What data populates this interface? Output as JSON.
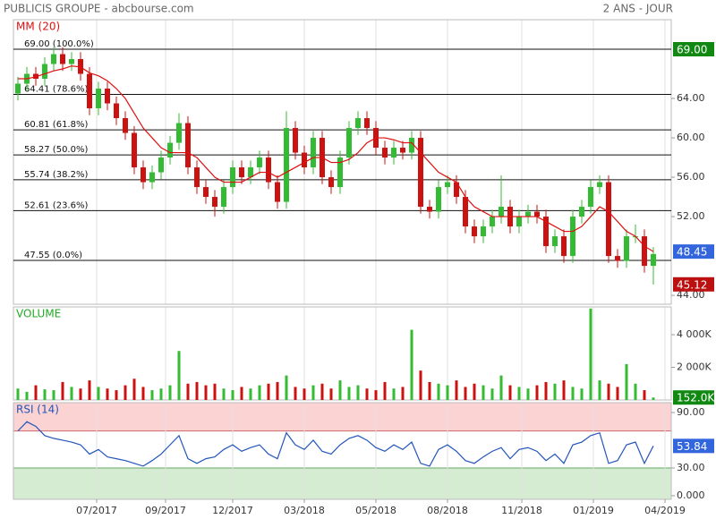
{
  "header": {
    "title": "PUBLICIS GROUPE - abcbourse.com",
    "period": "2 ANS - JOUR"
  },
  "chart_data": [
    {
      "type": "candlestick",
      "title": "MM (20)",
      "up_color": "#33bb33",
      "down_color": "#cc1111",
      "open": [
        64.5,
        65.5,
        66.5,
        66,
        67.5,
        68.5,
        67.5,
        68,
        66.5,
        63,
        65,
        63.5,
        62,
        60.5,
        57,
        55.5,
        56.5,
        58,
        59.5,
        61.5,
        57,
        55,
        54,
        53,
        55,
        57,
        56,
        57,
        58,
        55.5,
        53.5,
        61,
        58.5,
        57,
        60,
        56,
        55,
        58,
        61,
        62,
        61,
        59,
        58,
        59,
        58.5,
        60,
        53,
        52.5,
        55,
        55.5,
        54,
        51,
        50,
        51,
        52,
        53,
        51,
        52,
        52.5,
        52,
        49,
        50,
        48,
        52,
        53,
        55,
        55.5,
        48,
        47.5,
        50,
        50,
        47
      ],
      "high": [
        66.2,
        67.2,
        67.2,
        68.2,
        69.2,
        69.2,
        68.7,
        68.7,
        67.2,
        65.7,
        65.7,
        64.2,
        62.7,
        61.2,
        57.7,
        57.2,
        58.7,
        60.2,
        62.5,
        62.2,
        57.7,
        55.7,
        54.7,
        55.7,
        57.7,
        57.7,
        57.7,
        58.7,
        58.7,
        56.2,
        62.7,
        61.7,
        59.2,
        60.7,
        60.7,
        56.7,
        58.7,
        61.7,
        62.7,
        62.7,
        61.7,
        59.7,
        59.7,
        59.7,
        60.7,
        60.7,
        53.7,
        55.7,
        56.2,
        56.2,
        54.7,
        51.7,
        51.7,
        52.7,
        56.2,
        53.7,
        52.7,
        53.2,
        53.2,
        52.7,
        50.7,
        50.7,
        52.7,
        53.7,
        55.7,
        56.2,
        56.2,
        48.7,
        50.7,
        51.2,
        50.7,
        48.9
      ],
      "low": [
        63.8,
        64.8,
        65.3,
        65.3,
        66.8,
        66.8,
        66.8,
        65.8,
        62.3,
        62.3,
        62.8,
        61.3,
        59.8,
        56.3,
        54.8,
        54.8,
        55.8,
        57.3,
        58.8,
        56.3,
        54.3,
        53.3,
        52,
        52.3,
        54.3,
        55.3,
        55.3,
        56.3,
        54.8,
        52.8,
        52.8,
        57.8,
        56.3,
        56.3,
        55.3,
        54.3,
        54.3,
        57.3,
        60.3,
        60.3,
        58.3,
        57.3,
        57.3,
        57.8,
        57.8,
        52.3,
        51.8,
        51.8,
        54.3,
        53.3,
        50.3,
        49.3,
        49.3,
        50.3,
        51.3,
        50.3,
        50.3,
        51.3,
        51.3,
        48.3,
        48.3,
        47.3,
        47.3,
        51.3,
        52.3,
        54.3,
        47.3,
        46.8,
        46.8,
        49.3,
        46.3,
        45.1
      ],
      "close": [
        65.5,
        66.5,
        66,
        67.5,
        68.5,
        67.5,
        68,
        66.5,
        63,
        65,
        63.5,
        62,
        60.5,
        57,
        55.5,
        56.5,
        58,
        59.5,
        61.5,
        57,
        55,
        54,
        53,
        55,
        57,
        56,
        57,
        58,
        55.5,
        53.5,
        61,
        58.5,
        57,
        60,
        56,
        55,
        58,
        61,
        62,
        61,
        59,
        58,
        59,
        58.5,
        60,
        53,
        52.5,
        55,
        55.5,
        54,
        51,
        50,
        51,
        52,
        53,
        51,
        52,
        52.5,
        52,
        49,
        50,
        48,
        52,
        53,
        55,
        55.5,
        48,
        47.5,
        50,
        50,
        47,
        48.2
      ],
      "ma": {
        "name": "MM (20)",
        "color": "#dd1111",
        "values": [
          66,
          66,
          66.2,
          66.5,
          66.8,
          67,
          67.3,
          67.2,
          66.6,
          66.3,
          65.8,
          65,
          64,
          62.5,
          61,
          60,
          59,
          58.5,
          58.5,
          58.5,
          58,
          57,
          56,
          55.5,
          55.5,
          55.5,
          56,
          56.5,
          56.5,
          56,
          56.5,
          57,
          57.5,
          58,
          58,
          57.5,
          57.5,
          57.8,
          58.5,
          59.5,
          60,
          60,
          59.8,
          59.5,
          59.5,
          58.5,
          57.5,
          56.5,
          56,
          55.5,
          54,
          53,
          52.5,
          52,
          52,
          52,
          52,
          52,
          52,
          51.5,
          51,
          50.5,
          50.5,
          51,
          52,
          53,
          52.5,
          51.5,
          50.5,
          50,
          49,
          48.45
        ]
      },
      "ylim": [
        43.1,
        72
      ],
      "yticks": [
        {
          "value": 44,
          "label": "44.00"
        },
        {
          "value": 52,
          "label": "52.00"
        },
        {
          "value": 56,
          "label": "56.00"
        },
        {
          "value": 60,
          "label": "60.00"
        },
        {
          "value": 64,
          "label": "64.00"
        }
      ],
      "levels": [
        {
          "value": 69,
          "label": "69.00  (100.0%)"
        },
        {
          "value": 64.41,
          "label": "64.41  (78.6%)"
        },
        {
          "value": 60.81,
          "label": "60.81  (61.8%)"
        },
        {
          "value": 58.27,
          "label": "58.27  (50.0%)"
        },
        {
          "value": 55.74,
          "label": "55.74  (38.2%)"
        },
        {
          "value": 52.61,
          "label": "52.61  (23.6%)"
        },
        {
          "value": 47.55,
          "label": "47.55  (0.0%)"
        }
      ],
      "markers": [
        {
          "value": 69,
          "label": "69.00",
          "color": "#118811"
        },
        {
          "value": 48.45,
          "label": "48.45",
          "color": "#3366dd"
        },
        {
          "value": 45.12,
          "label": "45.12",
          "color": "#bb1111"
        }
      ]
    },
    {
      "type": "bar",
      "title": "VOLUME",
      "values": [
        700,
        500,
        900,
        650,
        600,
        1100,
        800,
        700,
        1200,
        800,
        700,
        600,
        900,
        1300,
        800,
        600,
        700,
        900,
        3000,
        1000,
        1100,
        900,
        1000,
        700,
        600,
        800,
        700,
        900,
        1000,
        1100,
        1500,
        800,
        700,
        900,
        1000,
        700,
        1200,
        800,
        900,
        700,
        600,
        1100,
        700,
        800,
        4300,
        1800,
        1100,
        1000,
        900,
        1200,
        800,
        1000,
        900,
        700,
        1500,
        900,
        800,
        700,
        900,
        1100,
        1000,
        1200,
        800,
        700,
        5600,
        1200,
        1000,
        800,
        2200,
        1000,
        600,
        152
      ],
      "ylim": [
        0,
        5700
      ],
      "yticks": [
        {
          "value": 2000,
          "label": "2 000K"
        },
        {
          "value": 4000,
          "label": "4 000K"
        }
      ],
      "markers": [
        {
          "value": 152,
          "label": "152.0K",
          "color": "#118811"
        }
      ]
    },
    {
      "type": "line",
      "title": "RSI (14)",
      "color": "#2255bb",
      "values": [
        70,
        80,
        75,
        65,
        62,
        60,
        58,
        55,
        45,
        50,
        42,
        40,
        38,
        35,
        32,
        38,
        45,
        55,
        65,
        40,
        35,
        40,
        42,
        50,
        55,
        48,
        52,
        55,
        45,
        40,
        68,
        55,
        50,
        60,
        48,
        45,
        55,
        62,
        65,
        60,
        52,
        48,
        55,
        50,
        58,
        35,
        32,
        50,
        55,
        48,
        38,
        35,
        42,
        48,
        52,
        40,
        50,
        52,
        48,
        38,
        45,
        35,
        55,
        58,
        65,
        68,
        35,
        38,
        55,
        58,
        35,
        53.84
      ],
      "ylim": [
        -3.9,
        100.6
      ],
      "yticks": [
        {
          "value": 0,
          "label": "0.000"
        },
        {
          "value": 30,
          "label": "30.00"
        },
        {
          "value": 90,
          "label": "90.00"
        }
      ],
      "upper": 70,
      "lower": 30,
      "markers": [
        {
          "value": 53.84,
          "label": "53.84",
          "color": "#3366dd"
        }
      ],
      "xlim": [
        -0.5,
        73
      ],
      "xticks": [
        {
          "value": 8.8,
          "label": "07/2017"
        },
        {
          "value": 16.5,
          "label": "09/2017"
        },
        {
          "value": 24,
          "label": "12/2017"
        },
        {
          "value": 32,
          "label": "03/2018"
        },
        {
          "value": 40,
          "label": "05/2018"
        },
        {
          "value": 48,
          "label": "08/2018"
        },
        {
          "value": 56.3,
          "label": "11/2018"
        },
        {
          "value": 64.3,
          "label": "01/2019"
        },
        {
          "value": 72.3,
          "label": "04/2019"
        }
      ]
    }
  ]
}
